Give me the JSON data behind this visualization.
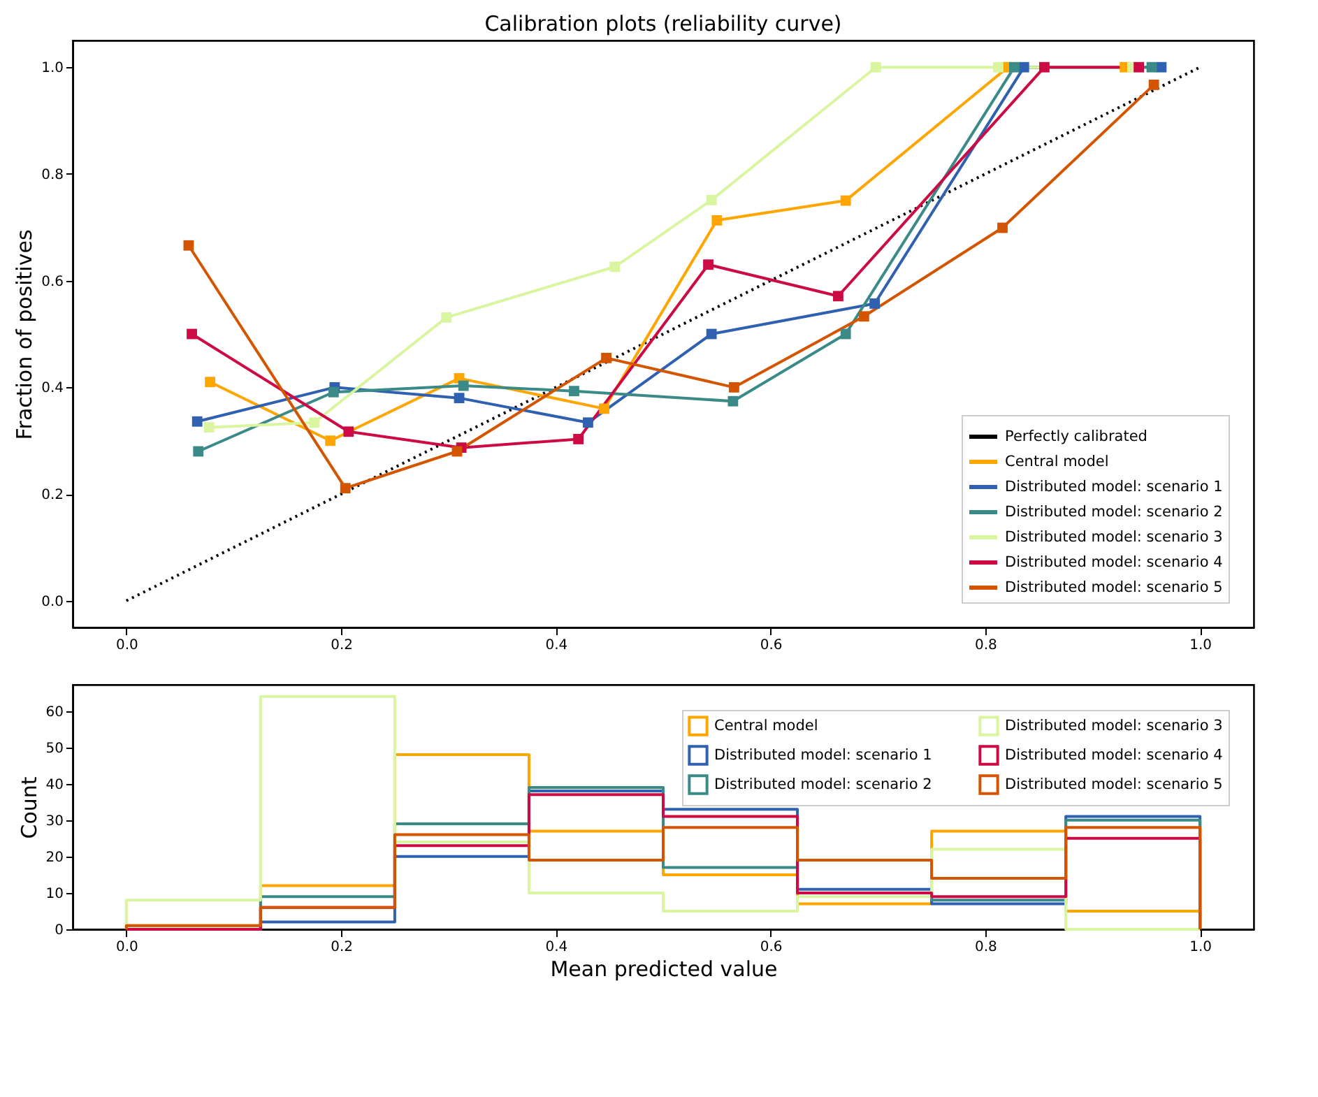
{
  "chart_data": [
    {
      "type": "line",
      "title": "Calibration plots (reliability curve)",
      "ylabel": "Fraction of positives",
      "xlim": [
        -0.05,
        1.05
      ],
      "ylim": [
        -0.05,
        1.05
      ],
      "xticks": [
        {
          "value": 0,
          "label": "0.0"
        },
        {
          "value": 0.2,
          "label": "0.2"
        },
        {
          "value": 0.4,
          "label": "0.4"
        },
        {
          "value": 0.6,
          "label": "0.6"
        },
        {
          "value": 0.8,
          "label": "0.8"
        },
        {
          "value": 1,
          "label": "1.0"
        }
      ],
      "yticks": [
        {
          "value": 0,
          "label": "0.0"
        },
        {
          "value": 0.2,
          "label": "0.2"
        },
        {
          "value": 0.4,
          "label": "0.4"
        },
        {
          "value": 0.6,
          "label": "0.6"
        },
        {
          "value": 0.8,
          "label": "0.8"
        },
        {
          "value": 1,
          "label": "1.0"
        }
      ],
      "grid": false,
      "legend": "bottom right",
      "marker": "square",
      "tick_labels": "xy",
      "series": [
        {
          "name": "Perfectly calibrated",
          "color": "#000000",
          "line_style": "dotted",
          "marker": "none",
          "x": [
            0,
            1
          ],
          "values": [
            0,
            1
          ]
        },
        {
          "name": "Central model",
          "color": "#ffa500",
          "x": [
            0.078,
            0.19,
            0.31,
            0.445,
            0.55,
            0.67,
            0.821,
            0.93
          ],
          "values": [
            0.41,
            0.3,
            0.417,
            0.36,
            0.713,
            0.75,
            1.0,
            1.0
          ]
        },
        {
          "name": "Distributed model: scenario 1",
          "color": "#3060b0",
          "x": [
            0.066,
            0.194,
            0.31,
            0.43,
            0.545,
            0.697,
            0.836,
            0.964
          ],
          "values": [
            0.336,
            0.4,
            0.38,
            0.334,
            0.5,
            0.557,
            1.0,
            1.0
          ]
        },
        {
          "name": "Distributed model: scenario 2",
          "color": "#3a8a88",
          "x": [
            0.067,
            0.193,
            0.314,
            0.417,
            0.565,
            0.67,
            0.827,
            0.955
          ],
          "values": [
            0.28,
            0.391,
            0.403,
            0.393,
            0.374,
            0.5,
            1.0,
            1.0
          ]
        },
        {
          "name": "Distributed model: scenario 3",
          "color": "#d9f5a0",
          "x": [
            0.077,
            0.175,
            0.298,
            0.455,
            0.545,
            0.698,
            0.812,
            0.937
          ],
          "values": [
            0.325,
            0.334,
            0.531,
            0.626,
            0.751,
            1.0,
            1.0,
            1.0
          ]
        },
        {
          "name": "Distributed model: scenario 4",
          "color": "#cc0a44",
          "x": [
            0.061,
            0.207,
            0.312,
            0.421,
            0.542,
            0.663,
            0.855,
            0.943
          ],
          "values": [
            0.5,
            0.317,
            0.287,
            0.303,
            0.63,
            0.571,
            1.0,
            1.0
          ]
        },
        {
          "name": "Distributed model: scenario 5",
          "color": "#d45500",
          "x": [
            0.058,
            0.204,
            0.308,
            0.447,
            0.566,
            0.687,
            0.816,
            0.957
          ],
          "values": [
            0.666,
            0.211,
            0.28,
            0.455,
            0.4,
            0.533,
            0.699,
            0.967
          ]
        }
      ]
    },
    {
      "type": "histogram",
      "xlabel": "Mean predicted value",
      "ylabel": "Count",
      "xlim": [
        -0.05,
        1.05
      ],
      "ylim": [
        0,
        67.2
      ],
      "xticks": [
        {
          "value": 0,
          "label": "0.0"
        },
        {
          "value": 0.2,
          "label": "0.2"
        },
        {
          "value": 0.4,
          "label": "0.4"
        },
        {
          "value": 0.6,
          "label": "0.6"
        },
        {
          "value": 0.8,
          "label": "0.8"
        },
        {
          "value": 1,
          "label": "1.0"
        }
      ],
      "yticks": [
        0,
        10,
        20,
        30,
        40,
        50,
        60
      ],
      "grid": false,
      "legend": "top right",
      "bins": [
        0,
        0.125,
        0.25,
        0.375,
        0.5,
        0.625,
        0.75,
        0.875,
        1
      ],
      "series": [
        {
          "name": "Central model",
          "color": "#ffa500",
          "values": [
            1,
            12,
            48,
            27,
            15,
            7,
            27,
            5
          ]
        },
        {
          "name": "Distributed model: scenario 1",
          "color": "#3060b0",
          "values": [
            0,
            2,
            20,
            38,
            33,
            11,
            7,
            31
          ]
        },
        {
          "name": "Distributed model: scenario 2",
          "color": "#3a8a88",
          "values": [
            0,
            9,
            29,
            39,
            17,
            10,
            8,
            30
          ]
        },
        {
          "name": "Distributed model: scenario 3",
          "color": "#d9f5a0",
          "values": [
            8,
            64,
            24,
            10,
            5,
            9,
            22,
            0
          ]
        },
        {
          "name": "Distributed model: scenario 4",
          "color": "#cc0a44",
          "values": [
            0,
            6,
            23,
            37,
            31,
            10,
            9,
            25
          ]
        },
        {
          "name": "Distributed model: scenario 5",
          "color": "#d45500",
          "values": [
            1,
            6,
            26,
            19,
            28,
            19,
            14,
            28
          ]
        }
      ]
    }
  ]
}
